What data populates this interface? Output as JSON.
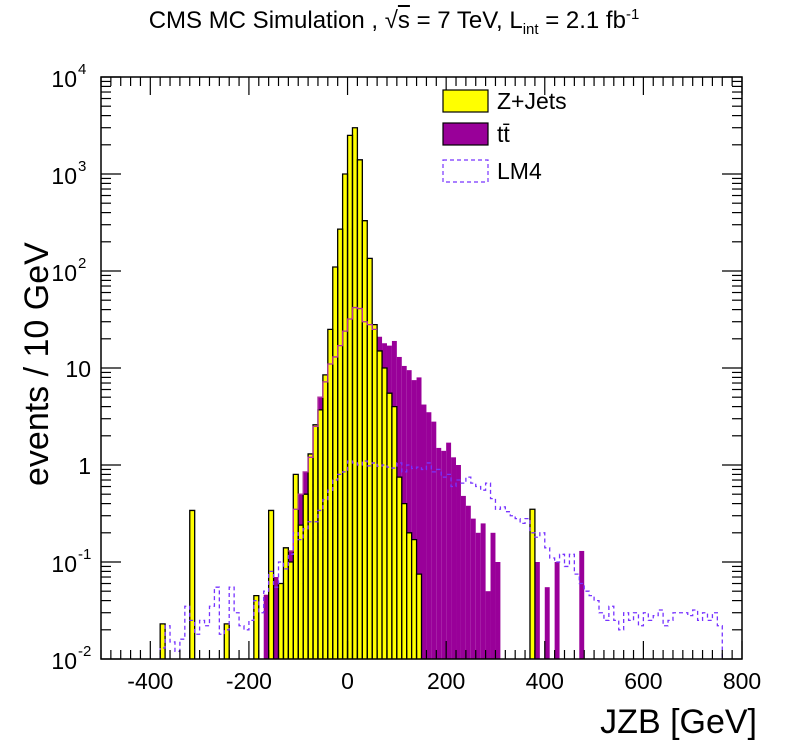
{
  "header": {
    "experiment": "CMS MC Simulation ,",
    "sqrt_symbol": "√",
    "sqrt_arg": "s",
    "energy": "= 7 TeV, L",
    "lumi_sub": "int",
    "lumi_value": "= 2.1 fb",
    "lumi_exp": "-1"
  },
  "chart_data": {
    "type": "histogram",
    "title": "CMS MC Simulation , √s = 7 TeV, L_int = 2.1 fb^-1",
    "xlabel": "JZB [GeV]",
    "ylabel": "events / 10 GeV",
    "xlim": [
      -500,
      800
    ],
    "ylim": [
      0.01,
      10000
    ],
    "yscale": "log",
    "bin_width": 10,
    "x_ticks": [
      {
        "value": -400,
        "label": "-400"
      },
      {
        "value": -200,
        "label": "-200"
      },
      {
        "value": 0,
        "label": "0"
      },
      {
        "value": 200,
        "label": "200"
      },
      {
        "value": 400,
        "label": "400"
      },
      {
        "value": 600,
        "label": "600"
      },
      {
        "value": 800,
        "label": "800"
      }
    ],
    "y_ticks": [
      {
        "value": 0.01,
        "base": "10",
        "exp": "-2"
      },
      {
        "value": 0.1,
        "base": "10",
        "exp": "-1"
      },
      {
        "value": 1,
        "base": "1",
        "exp": ""
      },
      {
        "value": 10,
        "base": "10",
        "exp": ""
      },
      {
        "value": 100,
        "base": "10",
        "exp": "2"
      },
      {
        "value": 1000,
        "base": "10",
        "exp": "3"
      },
      {
        "value": 10000,
        "base": "10",
        "exp": "4"
      }
    ],
    "legend": {
      "position": "top-right",
      "entries": [
        {
          "label": "Z+Jets",
          "style": "filled",
          "color": "#ffff00"
        },
        {
          "label": "tt̄",
          "style": "filled",
          "color": "#990099"
        },
        {
          "label": "LM4",
          "style": "dashed",
          "color": "#7733ff"
        }
      ]
    },
    "colors": {
      "zjets": "#ffff00",
      "ttbar": "#990099",
      "lm4": "#7733ff",
      "outline": "#000000"
    },
    "stack_note": "Z+Jets stacked on top of tt̄; LM4 overlaid (not stacked)",
    "series": [
      {
        "name": "ttbar",
        "bins": [
          [
            -170,
            0.046
          ],
          [
            -150,
            0.07
          ],
          [
            -120,
            0.13
          ],
          [
            -110,
            0.35
          ],
          [
            -100,
            0.5
          ],
          [
            -90,
            0.85
          ],
          [
            -80,
            1.2
          ],
          [
            -70,
            2.5
          ],
          [
            -60,
            5.0
          ],
          [
            -50,
            7.2
          ],
          [
            -40,
            11
          ],
          [
            -30,
            13
          ],
          [
            -20,
            17
          ],
          [
            -10,
            24
          ],
          [
            0,
            32
          ],
          [
            10,
            42
          ],
          [
            20,
            41
          ],
          [
            30,
            30
          ],
          [
            40,
            28
          ],
          [
            50,
            25
          ],
          [
            60,
            21
          ],
          [
            70,
            18
          ],
          [
            80,
            17
          ],
          [
            90,
            19
          ],
          [
            100,
            13
          ],
          [
            110,
            10.5
          ],
          [
            120,
            9.5
          ],
          [
            130,
            7.5
          ],
          [
            140,
            8.0
          ],
          [
            150,
            4.2
          ],
          [
            160,
            3.5
          ],
          [
            170,
            2.8
          ],
          [
            180,
            1.5
          ],
          [
            190,
            1.4
          ],
          [
            200,
            1.7
          ],
          [
            210,
            1.2
          ],
          [
            220,
            1.0
          ],
          [
            230,
            0.48
          ],
          [
            240,
            0.38
          ],
          [
            250,
            0.28
          ],
          [
            260,
            0.2
          ],
          [
            270,
            0.25
          ],
          [
            280,
            0.05
          ],
          [
            290,
            0.2
          ],
          [
            300,
            0.1
          ],
          [
            380,
            0.1
          ],
          [
            400,
            0.055
          ],
          [
            420,
            0.1
          ],
          [
            470,
            0.13
          ]
        ]
      },
      {
        "name": "zjets_stacked_total",
        "bins": [
          [
            -380,
            0.023
          ],
          [
            -320,
            0.34
          ],
          [
            -250,
            0.023
          ],
          [
            -190,
            0.045
          ],
          [
            -160,
            0.34
          ],
          [
            -140,
            0.06
          ],
          [
            -130,
            0.14
          ],
          [
            -120,
            0.1
          ],
          [
            -110,
            0.8
          ],
          [
            -100,
            0.24
          ],
          [
            -90,
            0.5
          ],
          [
            -80,
            1.3
          ],
          [
            -70,
            2.6
          ],
          [
            -60,
            3.7
          ],
          [
            -50,
            8.5
          ],
          [
            -40,
            25
          ],
          [
            -30,
            110
          ],
          [
            -20,
            270
          ],
          [
            -10,
            1000
          ],
          [
            0,
            2500
          ],
          [
            10,
            3000
          ],
          [
            20,
            1400
          ],
          [
            30,
            330
          ],
          [
            40,
            135
          ],
          [
            50,
            28
          ],
          [
            370,
            0.35
          ]
        ]
      },
      {
        "name": "zjets_only_below_ttbar_region",
        "bins": [
          [
            60,
            15
          ],
          [
            70,
            10
          ],
          [
            80,
            5.5
          ],
          [
            90,
            4.0
          ],
          [
            100,
            0.75
          ],
          [
            110,
            0.4
          ],
          [
            120,
            0.2
          ],
          [
            130,
            0.17
          ],
          [
            140,
            0.075
          ]
        ]
      },
      {
        "name": "LM4",
        "bins": [
          [
            -380,
            0.013
          ],
          [
            -370,
            0.022
          ],
          [
            -360,
            0.015
          ],
          [
            -350,
            0.012
          ],
          [
            -340,
            0.016
          ],
          [
            -330,
            0.035
          ],
          [
            -320,
            0.025
          ],
          [
            -310,
            0.018
          ],
          [
            -300,
            0.025
          ],
          [
            -290,
            0.022
          ],
          [
            -280,
            0.035
          ],
          [
            -270,
            0.055
          ],
          [
            -260,
            0.018
          ],
          [
            -250,
            0.02
          ],
          [
            -240,
            0.055
          ],
          [
            -230,
            0.03
          ],
          [
            -220,
            0.022
          ],
          [
            -210,
            0.02
          ],
          [
            -200,
            0.025
          ],
          [
            -190,
            0.04
          ],
          [
            -180,
            0.03
          ],
          [
            -170,
            0.05
          ],
          [
            -160,
            0.08
          ],
          [
            -150,
            0.055
          ],
          [
            -140,
            0.1
          ],
          [
            -130,
            0.085
          ],
          [
            -120,
            0.12
          ],
          [
            -110,
            0.2
          ],
          [
            -100,
            0.17
          ],
          [
            -90,
            0.22
          ],
          [
            -80,
            0.26
          ],
          [
            -70,
            0.26
          ],
          [
            -60,
            0.34
          ],
          [
            -50,
            0.44
          ],
          [
            -40,
            0.55
          ],
          [
            -30,
            0.7
          ],
          [
            -20,
            0.8
          ],
          [
            -10,
            0.85
          ],
          [
            0,
            1.1
          ],
          [
            10,
            1.05
          ],
          [
            20,
            1.0
          ],
          [
            30,
            1.1
          ],
          [
            40,
            0.98
          ],
          [
            50,
            1.05
          ],
          [
            60,
            0.97
          ],
          [
            70,
            1.0
          ],
          [
            80,
            0.95
          ],
          [
            90,
            0.93
          ],
          [
            100,
            1.05
          ],
          [
            110,
            0.85
          ],
          [
            120,
            1.0
          ],
          [
            130,
            0.92
          ],
          [
            140,
            0.95
          ],
          [
            150,
            0.9
          ],
          [
            160,
            1.05
          ],
          [
            170,
            0.85
          ],
          [
            180,
            0.9
          ],
          [
            190,
            0.75
          ],
          [
            200,
            0.8
          ],
          [
            210,
            0.6
          ],
          [
            220,
            0.7
          ],
          [
            230,
            0.65
          ],
          [
            240,
            0.75
          ],
          [
            250,
            0.65
          ],
          [
            260,
            0.6
          ],
          [
            270,
            0.55
          ],
          [
            280,
            0.65
          ],
          [
            290,
            0.45
          ],
          [
            300,
            0.35
          ],
          [
            310,
            0.37
          ],
          [
            320,
            0.33
          ],
          [
            330,
            0.3
          ],
          [
            340,
            0.28
          ],
          [
            350,
            0.25
          ],
          [
            360,
            0.28
          ],
          [
            370,
            0.2
          ],
          [
            380,
            0.18
          ],
          [
            390,
            0.2
          ],
          [
            400,
            0.14
          ],
          [
            410,
            0.11
          ],
          [
            420,
            0.1
          ],
          [
            430,
            0.12
          ],
          [
            440,
            0.09
          ],
          [
            450,
            0.12
          ],
          [
            460,
            0.075
          ],
          [
            470,
            0.06
          ],
          [
            480,
            0.05
          ],
          [
            490,
            0.045
          ],
          [
            500,
            0.04
          ],
          [
            510,
            0.03
          ],
          [
            520,
            0.025
          ],
          [
            530,
            0.035
          ],
          [
            540,
            0.025
          ],
          [
            550,
            0.02
          ],
          [
            560,
            0.03
          ],
          [
            570,
            0.025
          ],
          [
            580,
            0.03
          ],
          [
            590,
            0.022
          ],
          [
            600,
            0.03
          ],
          [
            610,
            0.025
          ],
          [
            620,
            0.028
          ],
          [
            630,
            0.032
          ],
          [
            640,
            0.022
          ],
          [
            650,
            0.025
          ],
          [
            660,
            0.03
          ],
          [
            670,
            0.03
          ],
          [
            680,
            0.03
          ],
          [
            690,
            0.028
          ],
          [
            700,
            0.032
          ],
          [
            710,
            0.025
          ],
          [
            720,
            0.03
          ],
          [
            730,
            0.025
          ],
          [
            740,
            0.03
          ],
          [
            750,
            0.022
          ]
        ]
      }
    ]
  }
}
